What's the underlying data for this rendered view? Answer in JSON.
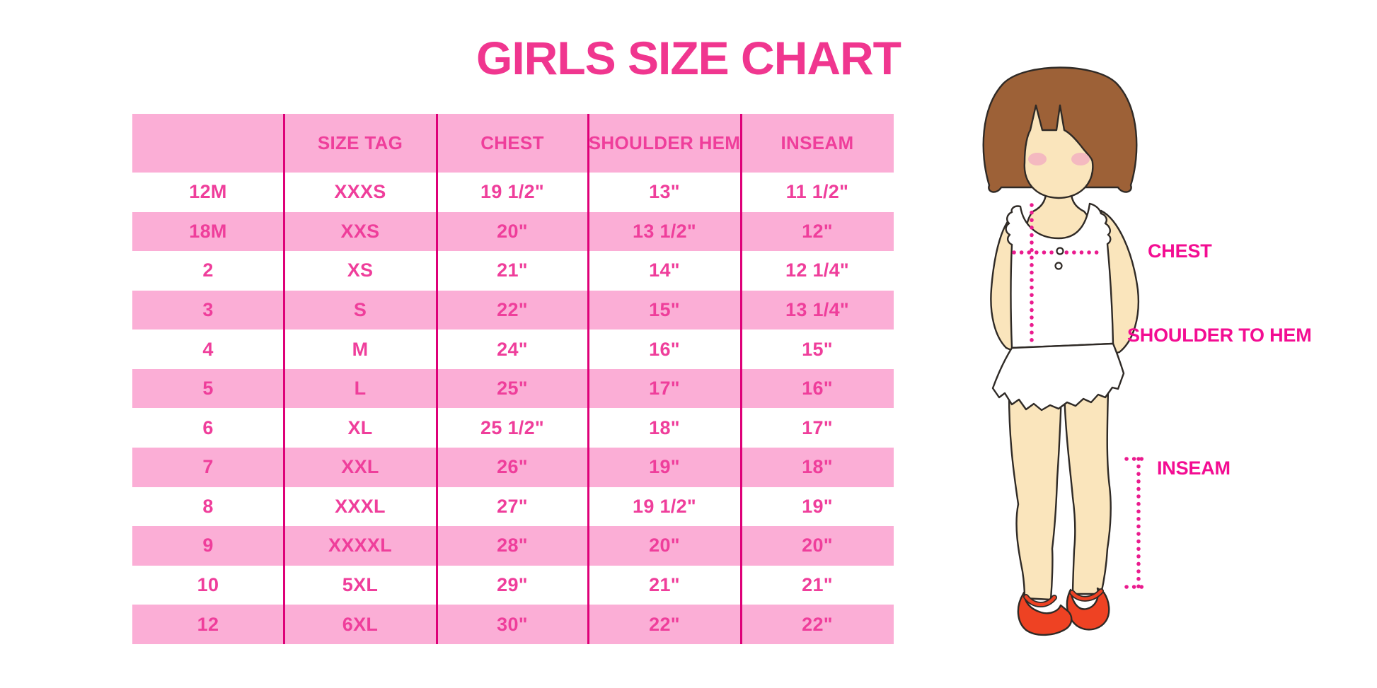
{
  "title": "GIRLS SIZE CHART",
  "chart_data": {
    "type": "table",
    "title": "GIRLS SIZE CHART",
    "columns": [
      "",
      "SIZE TAG",
      "CHEST",
      "SHOULDER HEM",
      "INSEAM"
    ],
    "rows": [
      [
        "12M",
        "XXXS",
        "19 1/2\"",
        "13\"",
        "11 1/2\""
      ],
      [
        "18M",
        "XXS",
        "20\"",
        "13 1/2\"",
        "12\""
      ],
      [
        "2",
        "XS",
        "21\"",
        "14\"",
        "12 1/4\""
      ],
      [
        "3",
        "S",
        "22\"",
        "15\"",
        "13 1/4\""
      ],
      [
        "4",
        "M",
        "24\"",
        "16\"",
        "15\""
      ],
      [
        "5",
        "L",
        "25\"",
        "17\"",
        "16\""
      ],
      [
        "6",
        "XL",
        "25 1/2\"",
        "18\"",
        "17\""
      ],
      [
        "7",
        "XXL",
        "26\"",
        "19\"",
        "18\""
      ],
      [
        "8",
        "XXXL",
        "27\"",
        "19 1/2\"",
        "19\""
      ],
      [
        "9",
        "XXXXL",
        "28\"",
        "20\"",
        "20\""
      ],
      [
        "10",
        "5XL",
        "29\"",
        "21\"",
        "21\""
      ],
      [
        "12",
        "6XL",
        "30\"",
        "22\"",
        "22\""
      ]
    ]
  },
  "diagram": {
    "figure": "toddler-girl-measurement-illustration",
    "labels": {
      "chest": "CHEST",
      "shoulder_to_hem": "SHOULDER TO HEM",
      "inseam": "INSEAM"
    }
  },
  "colors": {
    "pink_row": "#FBAED6",
    "table_text": "#EF3E9B",
    "title": "#F0368F",
    "label_text": "#F30D92",
    "divider": "#DE0078",
    "dotted_line": "#EA1B8E",
    "hair": "#9D6137",
    "skin": "#FAE5BC",
    "blush": "#F2AEC0",
    "shoe": "#EE4223",
    "outline": "#2F2A26"
  }
}
